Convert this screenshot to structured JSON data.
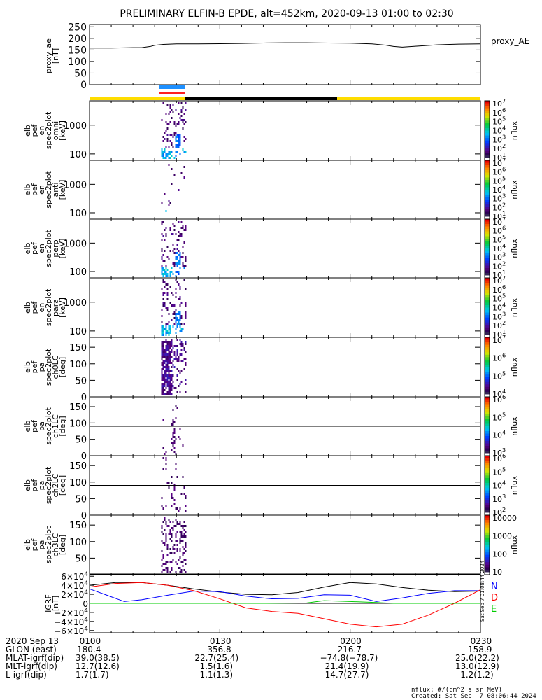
{
  "chart_data": {
    "type": "heatmap",
    "title": "PRELIMINARY ELFIN-B EPDE, alt=452km, 2020-09-13 01:00 to 02:30",
    "x": {
      "start": "0100",
      "end": "0230",
      "ticks": [
        "0100",
        "0130",
        "0200",
        "0230"
      ]
    },
    "proxy_ae_panel": {
      "ylabel": "proxy_ae\n[nT]",
      "right_label": "proxy_AE",
      "ylim": [
        0,
        260
      ],
      "yticks": [
        "0",
        "50",
        "100",
        "150",
        "200",
        "250"
      ],
      "series": [
        {
          "x": [
            0,
            5,
            10,
            12,
            14,
            15,
            17,
            20,
            25,
            30,
            35,
            40,
            45,
            50,
            55,
            60,
            65,
            68,
            70,
            72,
            75,
            80,
            85,
            90
          ],
          "values": [
            158,
            158,
            160,
            160,
            165,
            170,
            174,
            176,
            176,
            177,
            178,
            180,
            181,
            181,
            180,
            179,
            176,
            171,
            165,
            162,
            166,
            172,
            175,
            176
          ]
        }
      ]
    },
    "status_bars": {
      "blue_bar": {
        "from_min": 16.0,
        "to_min": 22.0,
        "color": "#1e90ff"
      },
      "red_bar": {
        "from_min": 16.0,
        "to_min": 22.0,
        "color": "#ff2020"
      },
      "yellow_black_bar": [
        {
          "from_min": 0,
          "to_min": 22,
          "color": "#ffdd00"
        },
        {
          "from_min": 22,
          "to_min": 57,
          "color": "#000000"
        },
        {
          "from_min": 57,
          "to_min": 90,
          "color": "#ffdd00"
        }
      ]
    },
    "spectrogram_panels": [
      {
        "ylabel": "elb\npef\nen\nspec2plot\nomni\n[keV]",
        "scale": "log",
        "yticks": [
          "100",
          "1000"
        ],
        "ylim": [
          60,
          7000
        ],
        "colorbar": {
          "label": "nflux",
          "ticks": [
            "10^7",
            "10^6",
            "10^5",
            "10^4",
            "10^3",
            "10^2",
            "10^1"
          ]
        }
      },
      {
        "ylabel": "elb\npef\nen\nspec2plot\nanti\n[keV]",
        "scale": "log",
        "yticks": [
          "100",
          "1000"
        ],
        "ylim": [
          60,
          7000
        ],
        "colorbar": {
          "label": "nflux",
          "ticks": [
            "10^7",
            "10^6",
            "10^5",
            "10^4",
            "10^3",
            "10^2",
            "10^1"
          ]
        }
      },
      {
        "ylabel": "elb\npef\nen\nspec2plot\nperp\n[keV]",
        "scale": "log",
        "yticks": [
          "100",
          "1000"
        ],
        "ylim": [
          60,
          7000
        ],
        "colorbar": {
          "label": "nflux",
          "ticks": [
            "10^7",
            "10^6",
            "10^5",
            "10^4",
            "10^3",
            "10^2",
            "10^1"
          ]
        }
      },
      {
        "ylabel": "elb\npef\nen\nspec2plot\npara\n[keV]",
        "scale": "log",
        "yticks": [
          "100",
          "1000"
        ],
        "ylim": [
          60,
          7000
        ],
        "colorbar": {
          "label": "nflux",
          "ticks": [
            "10^7",
            "10^6",
            "10^5",
            "10^4",
            "10^3",
            "10^2",
            "10^1"
          ]
        }
      },
      {
        "ylabel": "elb\npef\npa\nspec2plot\nch0LC\n[deg]",
        "scale": "linear",
        "yticks": [
          "0",
          "50",
          "100",
          "150"
        ],
        "ylim": [
          0,
          180
        ],
        "hline": 90,
        "colorbar": {
          "label": "nflux",
          "ticks": [
            "10^7",
            "10^6",
            "10^5",
            "10^4"
          ]
        }
      },
      {
        "ylabel": "elb\npef\npa\nspec2plot\nch1LC\n[deg]",
        "scale": "linear",
        "yticks": [
          "0",
          "50",
          "100",
          "150"
        ],
        "ylim": [
          0,
          180
        ],
        "hline": 90,
        "colorbar": {
          "label": "nflux",
          "ticks": [
            "10^6",
            "10^5",
            "10^4",
            "10^3"
          ]
        }
      },
      {
        "ylabel": "elb\npef\npa\nspec2plot\nch2LC\n[deg]",
        "scale": "linear",
        "yticks": [
          "0",
          "50",
          "100",
          "150"
        ],
        "ylim": [
          0,
          180
        ],
        "hline": 90,
        "colorbar": {
          "label": "nflux",
          "ticks": [
            "10^6",
            "10^5",
            "10^4",
            "10^3",
            "10^2"
          ]
        }
      },
      {
        "ylabel": "elb\npef\npa\nspec2plot\nch3LC\n[deg]",
        "scale": "linear",
        "yticks": [
          "50",
          "100",
          "150"
        ],
        "ylim": [
          0,
          180
        ],
        "hline": 90,
        "colorbar": {
          "label": "nflux",
          "ticks": [
            "10000",
            "1000",
            "100",
            "10"
          ]
        }
      }
    ],
    "igrf_panel": {
      "ylabel": "IGRF\n[nT]",
      "right_labels": [
        "N",
        "D",
        "E"
      ],
      "right_label_colors": [
        "#0000ff",
        "#ff0000",
        "#00cc00"
      ],
      "ylim": [
        -65000,
        65000
      ],
      "yticks": [
        "6×10^4",
        "4×10^4",
        "2×10^4",
        "0",
        "−2×10^4",
        "−4×10^4",
        "−6×10^4"
      ],
      "series": [
        {
          "color": "#000000",
          "x": [
            0,
            6,
            12,
            18,
            24,
            30,
            36,
            42,
            48,
            54,
            60,
            66,
            72,
            78,
            84,
            90
          ],
          "values": [
            40000,
            46000,
            46000,
            40000,
            32000,
            25000,
            20000,
            19000,
            24000,
            36000,
            46000,
            43000,
            35000,
            29000,
            26000,
            27000
          ]
        },
        {
          "color": "#0000ff",
          "x": [
            0,
            4,
            8,
            12,
            18,
            24,
            30,
            36,
            42,
            48,
            54,
            60,
            66,
            72,
            78,
            84,
            90
          ],
          "values": [
            32000,
            18000,
            4000,
            8000,
            18000,
            27000,
            26000,
            16000,
            10000,
            11000,
            19000,
            18000,
            4000,
            12000,
            22000,
            28000,
            28000
          ]
        },
        {
          "color": "#ff0000",
          "x": [
            0,
            6,
            12,
            18,
            24,
            30,
            36,
            42,
            48,
            54,
            60,
            66,
            72,
            78,
            84,
            90
          ],
          "values": [
            36000,
            44000,
            46000,
            40000,
            28000,
            10000,
            -10000,
            -18000,
            -22000,
            -34000,
            -46000,
            -52000,
            -46000,
            -26000,
            0,
            30000
          ]
        },
        {
          "color": "#00cc00",
          "x": [
            0,
            10,
            20,
            30,
            40,
            50,
            54,
            60,
            66,
            70,
            80,
            90
          ],
          "values": [
            0,
            0,
            0,
            0,
            0,
            1000,
            6000,
            4000,
            2000,
            0,
            0,
            0
          ]
        }
      ]
    },
    "footer_rows": [
      {
        "label": "2020 Sep 13",
        "values": [
          "0100",
          "0130",
          "0200",
          "0230"
        ]
      },
      {
        "label": "GLON (east)",
        "values": [
          "180.4",
          "356.8",
          "216.7",
          "158.9"
        ]
      },
      {
        "label": "MLAT-igrf(dip)",
        "values": [
          "39.0(38.5)",
          "22.7(25.4)",
          "−74.8(−78.7)",
          "25.0(22.2)"
        ]
      },
      {
        "label": "MLT-igrf(dip)",
        "values": [
          "12.7(12.6)",
          "1.5(1.6)",
          "21.4(19.9)",
          "13.0(12.9)"
        ]
      },
      {
        "label": "L-igrf(dip)",
        "values": [
          "1.7(1.7)",
          "1.1(1.3)",
          "14.7(27.7)",
          "1.2(1.2)"
        ]
      }
    ],
    "side_note": "Sat Sep  7 01:08:44 2024",
    "credits": [
      "nflux: #/(cm^2 s sr MeV)",
      "Created: Sat Sep  7 08:06:44 2024"
    ]
  }
}
